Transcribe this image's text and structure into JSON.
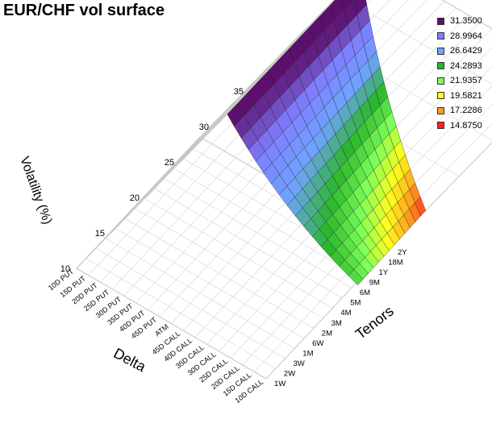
{
  "chart_data": {
    "type": "surface",
    "title": "EUR/CHF vol surface",
    "zlabel": "Volatility (%)",
    "xlabel": "Delta",
    "ylabel": "Tenors",
    "zlim": [
      10,
      35
    ],
    "z_ticks": [
      "10",
      "15",
      "20",
      "25",
      "30",
      "35"
    ],
    "delta": [
      "10D PUT",
      "15D PUT",
      "20D PUT",
      "25D PUT",
      "30D PUT",
      "35D PUT",
      "40D PUT",
      "45D PUT",
      "ATM",
      "45D CALL",
      "40D CALL",
      "35D CALL",
      "30D CALL",
      "25D CALL",
      "20D CALL",
      "15D CALL",
      "10D CALL"
    ],
    "tenors": [
      "1W",
      "2W",
      "3W",
      "1M",
      "6W",
      "2M",
      "3M",
      "4M",
      "5M",
      "6M",
      "9M",
      "1Y",
      "18M",
      "2Y"
    ],
    "surface_corners": {
      "10D PUT, 1W": 31.0,
      "10D CALL, 1W": 23.0,
      "10D PUT, 2Y": 32.5,
      "10D CALL, 2Y": 15.0
    },
    "legend": [
      {
        "value": "31.3500",
        "color": "#5c0f6e"
      },
      {
        "value": "28.9964",
        "color": "#7f7fff"
      },
      {
        "value": "26.6429",
        "color": "#6fa3ff"
      },
      {
        "value": "24.2893",
        "color": "#2bb62b"
      },
      {
        "value": "21.9357",
        "color": "#7cff5a"
      },
      {
        "value": "19.5821",
        "color": "#ffff1e"
      },
      {
        "value": "17.2286",
        "color": "#ff9a1e"
      },
      {
        "value": "14.8750",
        "color": "#ff1e1e"
      }
    ]
  }
}
